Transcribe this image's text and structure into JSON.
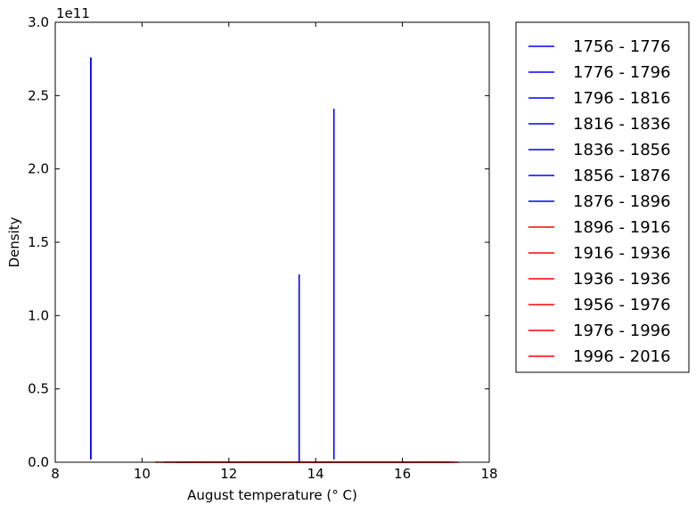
{
  "chart_data": {
    "type": "line",
    "title": "",
    "xlabel": "August temperature (° C)",
    "ylabel": "Density",
    "y_offset_label": "1e11",
    "xlim": [
      8,
      18
    ],
    "ylim": [
      0,
      3.0
    ],
    "x_ticks": [
      8,
      10,
      12,
      14,
      16,
      18
    ],
    "y_ticks": [
      0.0,
      0.5,
      1.0,
      1.5,
      2.0,
      2.5,
      3.0
    ],
    "x_tick_labels": [
      "8",
      "10",
      "12",
      "14",
      "16",
      "18"
    ],
    "y_tick_labels": [
      "0.0",
      "0.5",
      "1.0",
      "1.5",
      "2.0",
      "2.5",
      "3.0"
    ],
    "grid": false,
    "legend_position": "outside-right",
    "series": [
      {
        "name": "1756 - 1776",
        "color": "#0000ff",
        "x": [
          8.82,
          8.82
        ],
        "y": [
          0.02,
          2.76
        ]
      },
      {
        "name": "1776 - 1796",
        "color": "#0000ff",
        "x": [
          8.82,
          8.82
        ],
        "y": [
          0.02,
          2.76
        ]
      },
      {
        "name": "1796 - 1816",
        "color": "#0000ff",
        "x": [
          13.62,
          13.62
        ],
        "y": [
          0.0,
          1.28
        ]
      },
      {
        "name": "1816 - 1836",
        "color": "#0000ff",
        "x": [
          14.42,
          14.42
        ],
        "y": [
          0.02,
          2.41
        ]
      },
      {
        "name": "1836 - 1856",
        "color": "#0000ff",
        "x": [
          8.82,
          8.82
        ],
        "y": [
          0.02,
          2.76
        ]
      },
      {
        "name": "1856 - 1876",
        "color": "#0000ff",
        "x": [
          13.62,
          13.62
        ],
        "y": [
          0.0,
          1.28
        ]
      },
      {
        "name": "1876 - 1896",
        "color": "#0000ff",
        "x": [
          14.42,
          14.42
        ],
        "y": [
          0.02,
          2.41
        ]
      },
      {
        "name": "1896 - 1916",
        "color": "#ff0000",
        "x": [
          10.3,
          17.3
        ],
        "y": [
          0.0,
          0.0
        ]
      },
      {
        "name": "1916 - 1936",
        "color": "#ff0000",
        "x": [
          10.5,
          17.1
        ],
        "y": [
          0.0,
          0.0
        ]
      },
      {
        "name": "1936 - 1936",
        "color": "#ff0000",
        "x": [
          10.8,
          17.0
        ],
        "y": [
          0.0,
          0.0
        ]
      },
      {
        "name": "1956 - 1976",
        "color": "#ff0000",
        "x": [
          11.0,
          16.8
        ],
        "y": [
          0.0,
          0.0
        ]
      },
      {
        "name": "1976 - 1996",
        "color": "#ff0000",
        "x": [
          11.2,
          16.9
        ],
        "y": [
          0.0,
          0.0
        ]
      },
      {
        "name": "1996 - 2016",
        "color": "#ff0000",
        "x": [
          11.5,
          17.2
        ],
        "y": [
          0.0,
          0.0
        ]
      }
    ]
  }
}
